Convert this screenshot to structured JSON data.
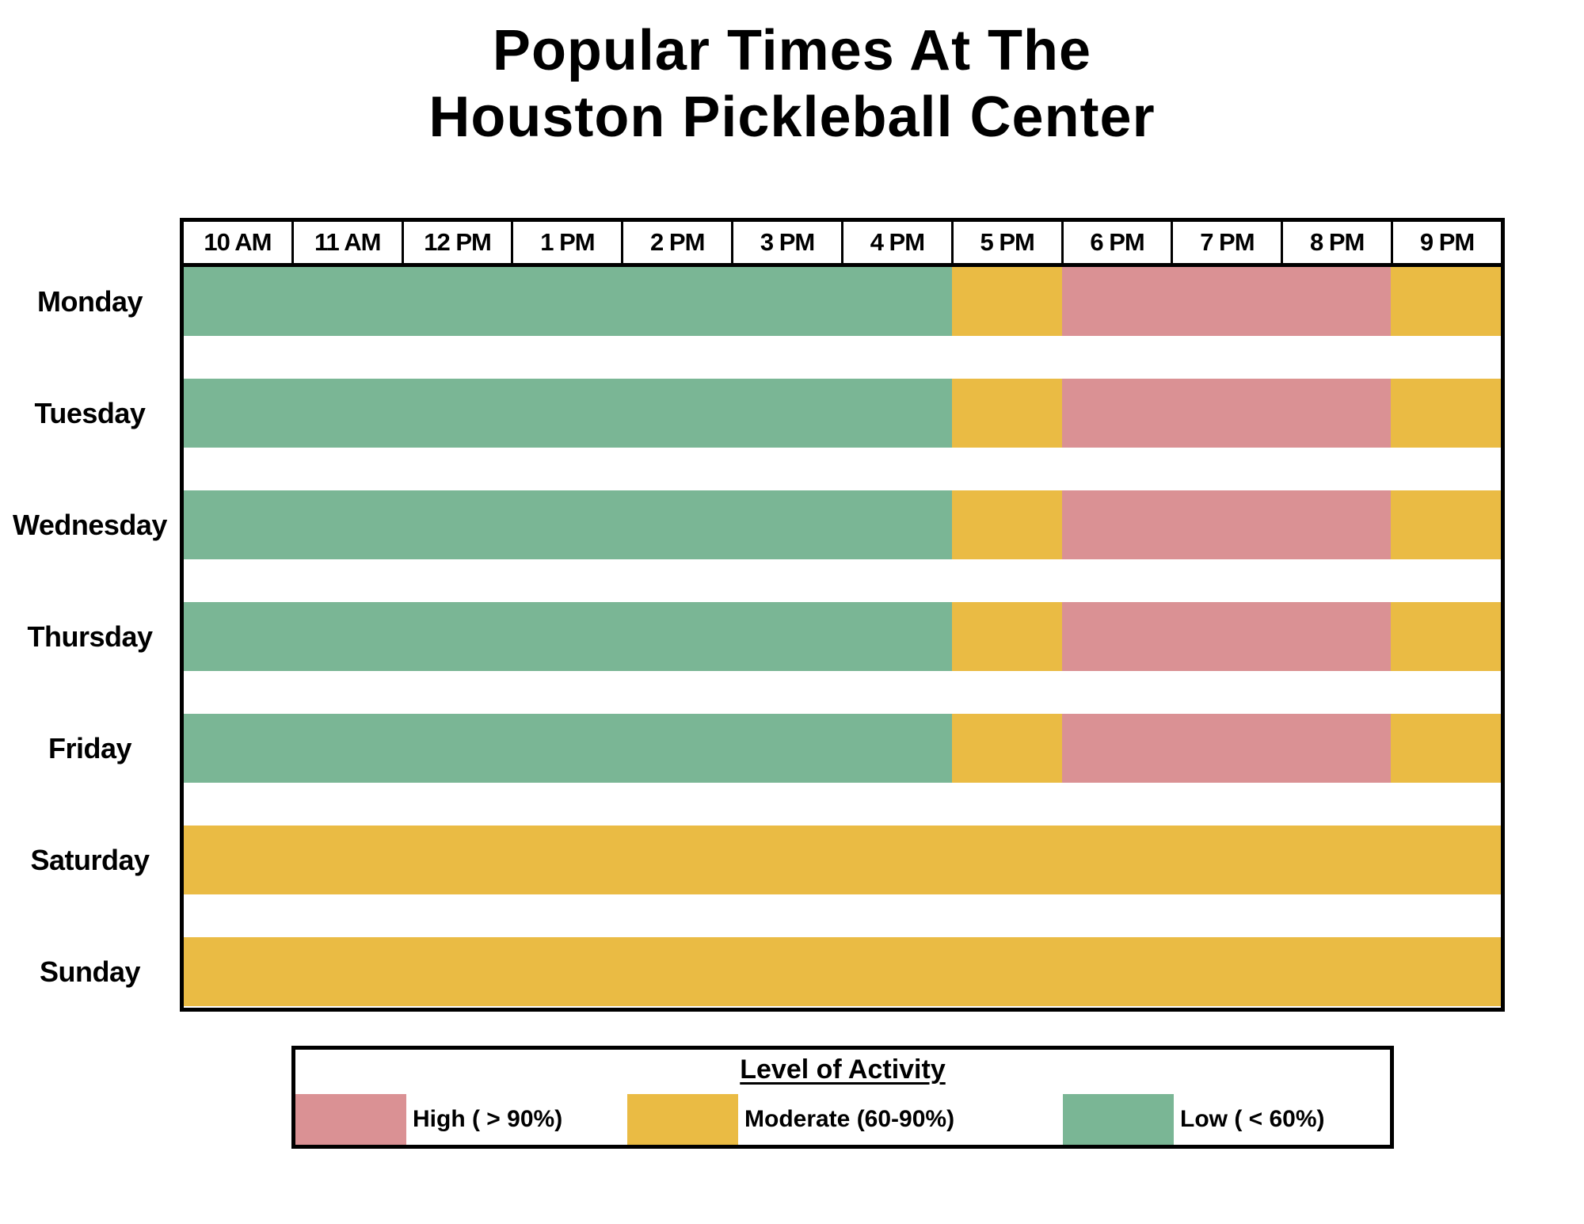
{
  "title": {
    "line1": "Popular Times At The",
    "line2": "Houston Pickleball Center"
  },
  "chart_data": {
    "type": "heatmap",
    "title": "Popular Times At The Houston Pickleball Center",
    "x_labels": [
      "10 AM",
      "11 AM",
      "12 PM",
      "1 PM",
      "2 PM",
      "3 PM",
      "4 PM",
      "5 PM",
      "6 PM",
      "7 PM",
      "8 PM",
      "9 PM"
    ],
    "colors": {
      "high": "#DA9194",
      "moderate": "#EABB44",
      "low": "#7AB695"
    },
    "legend": {
      "title": "Level of Activity",
      "position": "bottom",
      "entries": [
        {
          "label": "High ( > 90%)",
          "level": "high",
          "color": "#DA9194"
        },
        {
          "label": "Moderate (60-90%)",
          "level": "moderate",
          "color": "#EABB44"
        },
        {
          "label": "Low ( < 60%)",
          "level": "low",
          "color": "#7AB695"
        }
      ]
    },
    "days": [
      {
        "label": "Monday",
        "slots": [
          "low",
          "low",
          "low",
          "low",
          "low",
          "low",
          "low",
          "moderate",
          "high",
          "high",
          "high",
          "moderate"
        ]
      },
      {
        "label": "Tuesday",
        "slots": [
          "low",
          "low",
          "low",
          "low",
          "low",
          "low",
          "low",
          "moderate",
          "high",
          "high",
          "high",
          "moderate"
        ]
      },
      {
        "label": "Wednesday",
        "slots": [
          "low",
          "low",
          "low",
          "low",
          "low",
          "low",
          "low",
          "moderate",
          "high",
          "high",
          "high",
          "moderate"
        ]
      },
      {
        "label": "Thursday",
        "slots": [
          "low",
          "low",
          "low",
          "low",
          "low",
          "low",
          "low",
          "moderate",
          "high",
          "high",
          "high",
          "moderate"
        ]
      },
      {
        "label": "Friday",
        "slots": [
          "low",
          "low",
          "low",
          "low",
          "low",
          "low",
          "low",
          "moderate",
          "high",
          "high",
          "high",
          "moderate"
        ]
      },
      {
        "label": "Saturday",
        "slots": [
          "moderate",
          "moderate",
          "moderate",
          "moderate",
          "moderate",
          "moderate",
          "moderate",
          "moderate",
          "moderate",
          "moderate",
          "moderate",
          "moderate"
        ]
      },
      {
        "label": "Sunday",
        "slots": [
          "moderate",
          "moderate",
          "moderate",
          "moderate",
          "moderate",
          "moderate",
          "moderate",
          "moderate",
          "moderate",
          "moderate",
          "moderate",
          "moderate"
        ]
      }
    ]
  }
}
